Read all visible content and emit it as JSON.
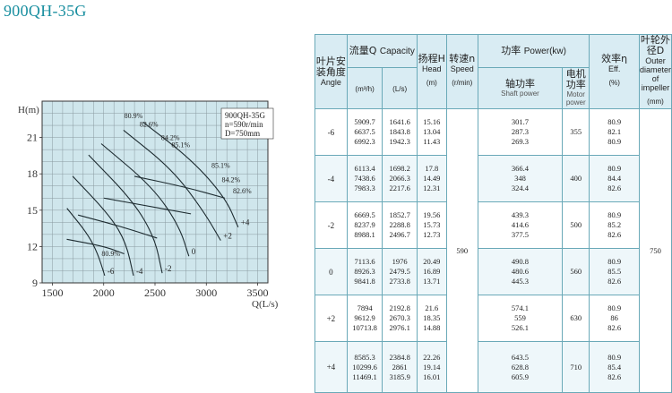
{
  "page_title": "900QH-35G",
  "chart_data": [
    {
      "type": "line",
      "title": "900QH-35G",
      "info_box": [
        "900QH-35G",
        "n=590r/min",
        "D=750mm"
      ],
      "xlabel": "Q(L/s)",
      "ylabel": "H(m)",
      "xlim": [
        1400,
        3600
      ],
      "ylim": [
        9,
        24
      ],
      "xticks": [
        1500,
        2000,
        2500,
        3000,
        3500
      ],
      "yticks": [
        9,
        12,
        15,
        18,
        21
      ],
      "grid": true,
      "series": [
        {
          "name": "-6",
          "x": [
            1642,
            1844,
            1942,
            2010
          ],
          "y": [
            15.16,
            13.04,
            11.43,
            9.6
          ]
        },
        {
          "name": "-4",
          "x": [
            1698,
            2066,
            2218,
            2290
          ],
          "y": [
            17.8,
            14.49,
            12.31,
            9.6
          ]
        },
        {
          "name": "-2",
          "x": [
            1853,
            2288,
            2497,
            2570
          ],
          "y": [
            19.56,
            15.73,
            12.73,
            9.8
          ]
        },
        {
          "name": "0",
          "x": [
            1976,
            2480,
            2734,
            2830
          ],
          "y": [
            20.49,
            16.89,
            13.71,
            11.2
          ]
        },
        {
          "name": "+2",
          "x": [
            2193,
            2670,
            2976,
            3140
          ],
          "y": [
            21.6,
            18.35,
            14.88,
            12.5
          ]
        },
        {
          "name": "+4",
          "x": [
            2385,
            2861,
            3186,
            3310
          ],
          "y": [
            22.26,
            19.14,
            16.01,
            13.6
          ]
        }
      ],
      "efficiency_contours": [
        {
          "label": "80.9%",
          "x": [
            1640,
            2010,
            2200
          ],
          "y": [
            12.6,
            12.0,
            11.4
          ]
        },
        {
          "label": "82.6%",
          "x": [
            1750,
            2150,
            2520
          ],
          "y": [
            14.6,
            13.7,
            12.7
          ]
        },
        {
          "label": "84.2%",
          "x": [
            2000,
            2460,
            2850
          ],
          "y": [
            16.0,
            15.3,
            14.7
          ]
        },
        {
          "label": "85.1%",
          "x": [
            2300,
            2800,
            3180
          ],
          "y": [
            17.8,
            16.9,
            16.0
          ]
        }
      ],
      "contour_labels": [
        {
          "text": "80.9%",
          "x": 2200,
          "y": 22.6
        },
        {
          "text": "82.6%",
          "x": 2350,
          "y": 21.9
        },
        {
          "text": "84.2%",
          "x": 2560,
          "y": 20.8
        },
        {
          "text": "85.1%",
          "x": 2660,
          "y": 20.2
        },
        {
          "text": "85.1%",
          "x": 3050,
          "y": 18.5
        },
        {
          "text": "84.2%",
          "x": 3150,
          "y": 17.3
        },
        {
          "text": "82.6%",
          "x": 3260,
          "y": 16.4
        },
        {
          "text": "80.9%",
          "x": 1980,
          "y": 11.2
        }
      ]
    },
    {
      "type": "table",
      "columns": {
        "angle": {
          "zh": "叶片安装角度",
          "en": "Angle"
        },
        "capacity": {
          "zh": "流量Q",
          "en": "Capacity",
          "unit1": "(m³/h)",
          "unit2": "(L/s)"
        },
        "head": {
          "zh": "扬程H",
          "en": "Head",
          "unit": "(m)"
        },
        "speed": {
          "zh": "转速n",
          "en": "Speed",
          "unit": "(r/min)"
        },
        "power": {
          "zh": "功率",
          "en": "Power(kw)"
        },
        "shaft": {
          "zh": "轴功率",
          "en": "Shaft power"
        },
        "motor": {
          "zh": "电机功率",
          "en": "Motor power"
        },
        "eff": {
          "zh": "效率η",
          "en": "Eff.",
          "unit": "(%)"
        },
        "impeller": {
          "zh": "叶轮外径D",
          "en": "Outer diameter of impeller",
          "unit": "(mm)"
        }
      },
      "speed_value": "590",
      "impeller_value": "750",
      "rows": [
        {
          "angle": "-6",
          "m3h": [
            "5909.7",
            "6637.5",
            "6992.3"
          ],
          "ls": [
            "1641.6",
            "1843.8",
            "1942.3"
          ],
          "head": [
            "15.16",
            "13.04",
            "11.43"
          ],
          "shaft": [
            "301.7",
            "287.3",
            "269.3"
          ],
          "motor": "355",
          "eff": [
            "80.9",
            "82.1",
            "80.9"
          ]
        },
        {
          "angle": "-4",
          "m3h": [
            "6113.4",
            "7438.6",
            "7983.3"
          ],
          "ls": [
            "1698.2",
            "2066.3",
            "2217.6"
          ],
          "head": [
            "17.8",
            "14.49",
            "12.31"
          ],
          "shaft": [
            "366.4",
            "348",
            "324.4"
          ],
          "motor": "400",
          "eff": [
            "80.9",
            "84.4",
            "82.6"
          ]
        },
        {
          "angle": "-2",
          "m3h": [
            "6669.5",
            "8237.9",
            "8988.1"
          ],
          "ls": [
            "1852.7",
            "2288.8",
            "2496.7"
          ],
          "head": [
            "19.56",
            "15.73",
            "12.73"
          ],
          "shaft": [
            "439.3",
            "414.6",
            "377.5"
          ],
          "motor": "500",
          "eff": [
            "80.9",
            "85.2",
            "82.6"
          ]
        },
        {
          "angle": "0",
          "m3h": [
            "7113.6",
            "8926.3",
            "9841.8"
          ],
          "ls": [
            "1976",
            "2479.5",
            "2733.8"
          ],
          "head": [
            "20.49",
            "16.89",
            "13.71"
          ],
          "shaft": [
            "490.8",
            "480.6",
            "445.3"
          ],
          "motor": "560",
          "eff": [
            "80.9",
            "85.5",
            "82.6"
          ]
        },
        {
          "angle": "+2",
          "m3h": [
            "7894",
            "9612.9",
            "10713.8"
          ],
          "ls": [
            "2192.8",
            "2670.3",
            "2976.1"
          ],
          "head": [
            "21.6",
            "18.35",
            "14.88"
          ],
          "shaft": [
            "574.1",
            "559",
            "526.1"
          ],
          "motor": "630",
          "eff": [
            "80.9",
            "86",
            "82.6"
          ]
        },
        {
          "angle": "+4",
          "m3h": [
            "8585.3",
            "10299.6",
            "11469.1"
          ],
          "ls": [
            "2384.8",
            "2861",
            "3185.9"
          ],
          "head": [
            "22.26",
            "19.14",
            "16.01"
          ],
          "shaft": [
            "643.5",
            "628.8",
            "605.9"
          ],
          "motor": "710",
          "eff": [
            "80.9",
            "85.4",
            "82.6"
          ]
        }
      ]
    }
  ]
}
